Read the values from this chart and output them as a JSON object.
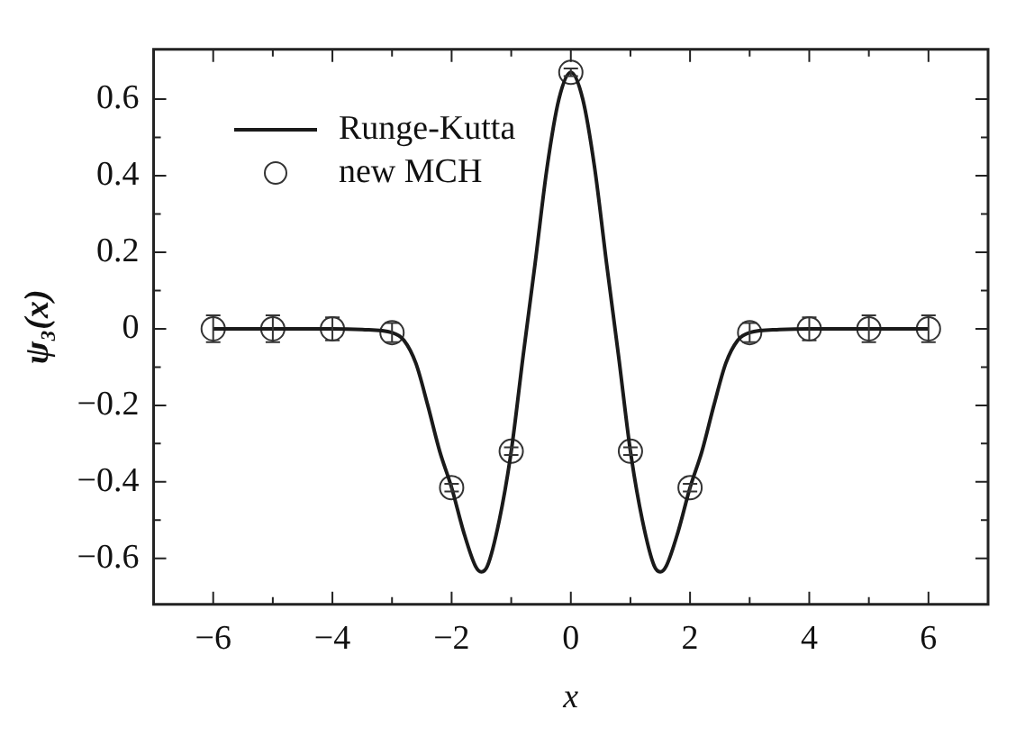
{
  "chart_data": {
    "type": "line",
    "xlabel": "x",
    "ylabel": "ψ₃(x)",
    "xlim": [
      -7,
      7
    ],
    "ylim": [
      -0.72,
      0.73
    ],
    "xticks": [
      -6,
      -4,
      -2,
      0,
      2,
      4,
      6
    ],
    "yticks": [
      -0.6,
      -0.4,
      -0.2,
      0,
      0.2,
      0.4,
      0.6
    ],
    "grid": false,
    "legend": "top left",
    "series": [
      {
        "name": "Runge-Kutta",
        "type": "line",
        "color": "#1a1a1a",
        "marker": "none",
        "line_style": "solid",
        "x": [
          -6,
          -4,
          -3.5,
          -3,
          -2.8,
          -2.6,
          -2.4,
          -2.2,
          -2,
          -1.8,
          -1.6,
          -1.5,
          -1.4,
          -1.2,
          -1,
          -0.8,
          -0.6,
          -0.4,
          -0.2,
          0,
          0.2,
          0.4,
          0.6,
          0.8,
          1,
          1.2,
          1.4,
          1.5,
          1.6,
          1.8,
          2,
          2.2,
          2.4,
          2.6,
          2.8,
          3,
          3.5,
          4,
          6
        ],
        "values": [
          0,
          0,
          -0.002,
          -0.01,
          -0.03,
          -0.09,
          -0.2,
          -0.32,
          -0.415,
          -0.53,
          -0.62,
          -0.635,
          -0.62,
          -0.5,
          -0.32,
          -0.07,
          0.17,
          0.42,
          0.6,
          0.67,
          0.6,
          0.42,
          0.17,
          -0.07,
          -0.32,
          -0.5,
          -0.62,
          -0.635,
          -0.62,
          -0.53,
          -0.415,
          -0.32,
          -0.2,
          -0.09,
          -0.03,
          -0.01,
          -0.002,
          0,
          0
        ]
      },
      {
        "name": "new MCH",
        "type": "scatter",
        "color": "#333333",
        "marker": "circle",
        "x": [
          -6,
          -5,
          -4,
          -3,
          -2,
          -1,
          0,
          1,
          2,
          3,
          4,
          5,
          6
        ],
        "values": [
          0,
          0,
          0,
          -0.01,
          -0.415,
          -0.32,
          0.67,
          -0.32,
          -0.415,
          -0.01,
          0,
          0,
          0
        ],
        "errors": [
          0.035,
          0.035,
          0.03,
          0.025,
          0.01,
          0.01,
          0.01,
          0.01,
          0.01,
          0.025,
          0.03,
          0.035,
          0.035
        ]
      }
    ]
  }
}
